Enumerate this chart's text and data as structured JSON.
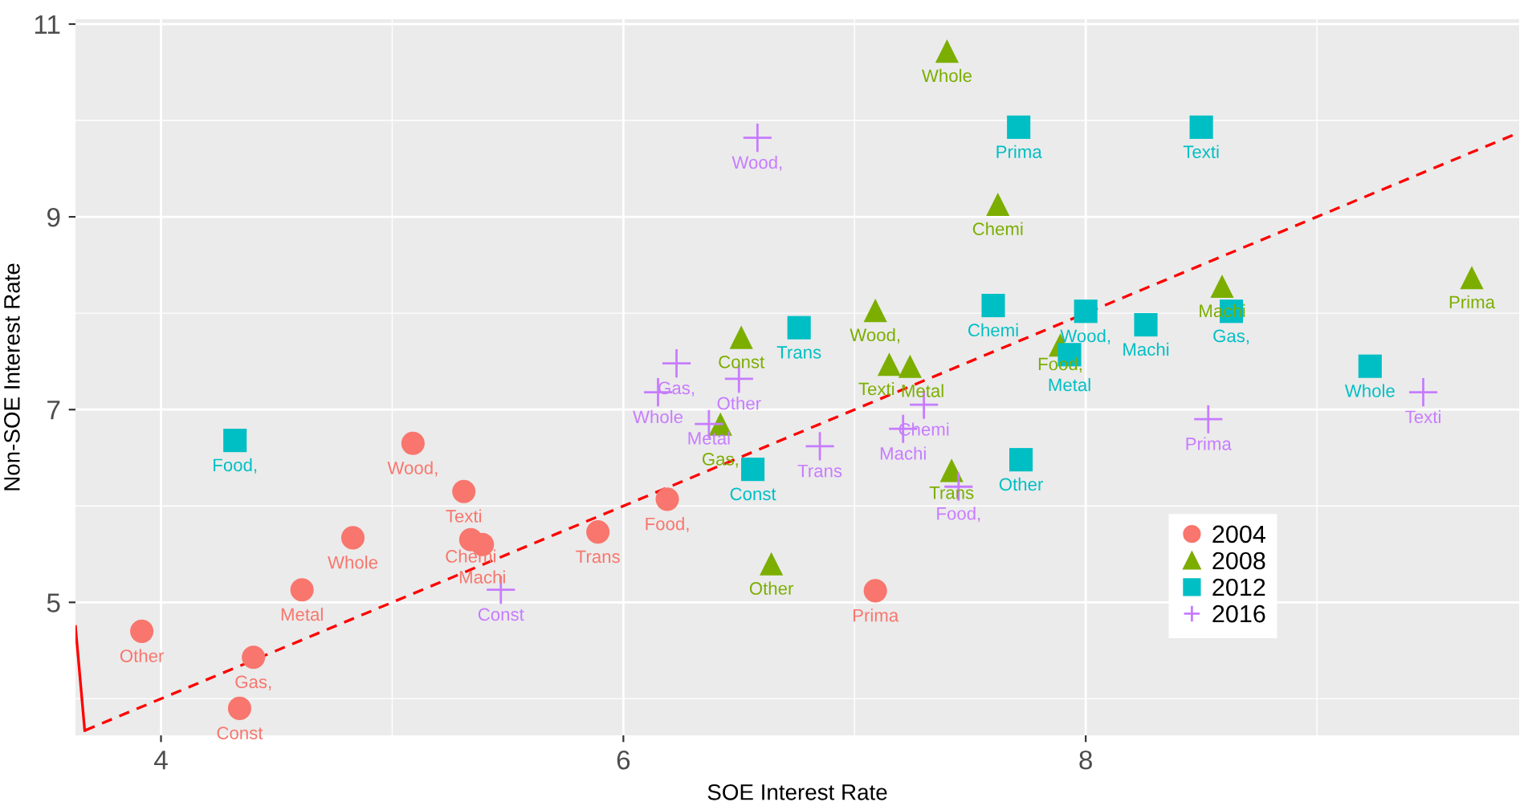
{
  "chart_data": {
    "type": "scatter",
    "xlabel": "SOE Interest Rate",
    "ylabel": "Non-SOE Interest Rate",
    "xlim": [
      3.63,
      9.875
    ],
    "ylim": [
      3.62,
      11.05
    ],
    "xticks": [
      4,
      6,
      8
    ],
    "yticks": [
      5,
      7,
      9,
      11
    ],
    "grid": true,
    "legend": "bottom right",
    "series": [
      {
        "name": "2004",
        "color": "#F8766D",
        "marker": "circle",
        "x": [
          3.917,
          4.4,
          4.34,
          4.61,
          4.83,
          5.09,
          5.31,
          5.34,
          5.39,
          5.89,
          6.19,
          7.09
        ],
        "values": [
          4.7,
          4.43,
          3.9,
          5.13,
          5.67,
          6.65,
          6.15,
          5.65,
          5.6,
          5.73,
          6.07,
          5.12
        ],
        "value_labels": [
          "Other",
          "Gas,",
          "Const",
          "Metal",
          "Whole",
          "Wood,",
          "Texti",
          "Chemi",
          "Machi",
          "Trans",
          "Food,",
          "Prima"
        ]
      },
      {
        "name": "2008",
        "color": "#7CAE00",
        "marker": "triangle",
        "x": [
          7.4,
          7.62,
          7.09,
          6.51,
          7.15,
          7.24,
          6.42,
          7.42,
          6.64,
          7.89,
          8.59,
          9.67
        ],
        "values": [
          10.72,
          9.13,
          8.03,
          7.75,
          7.47,
          7.45,
          6.85,
          6.37,
          5.4,
          7.67,
          8.28,
          8.37
        ],
        "value_labels": [
          "Whole",
          "Chemi",
          "Wood,",
          "Const",
          "Texti",
          "Metal",
          "Gas,",
          "Trans",
          "Other",
          "Food,",
          "Machi",
          "Prima"
        ]
      },
      {
        "name": "2012",
        "color": "#00BFC4",
        "marker": "square",
        "x": [
          7.71,
          8.5,
          7.6,
          8.0,
          8.26,
          8.63,
          7.93,
          6.76,
          9.23,
          6.56,
          7.72,
          4.32
        ],
        "values": [
          9.93,
          9.93,
          8.08,
          8.02,
          7.88,
          8.02,
          7.57,
          7.85,
          7.45,
          6.38,
          6.48,
          6.68
        ],
        "value_labels": [
          "Prima",
          "Texti",
          "Chemi",
          "Wood,",
          "Machi",
          "Gas,",
          "Metal",
          "Trans",
          "Whole",
          "Const",
          "Other",
          "Food,"
        ]
      },
      {
        "name": "2016",
        "color": "#C77CFF",
        "marker": "cross",
        "x": [
          6.58,
          6.23,
          6.5,
          6.15,
          6.37,
          6.85,
          7.3,
          7.21,
          7.45,
          5.47,
          8.53,
          9.46
        ],
        "values": [
          9.82,
          7.48,
          7.32,
          7.18,
          6.85,
          6.62,
          7.05,
          6.8,
          6.2,
          5.13,
          6.9,
          7.18
        ],
        "value_labels": [
          "Wood,",
          "Gas,",
          "Other",
          "Whole",
          "Metal",
          "Trans",
          "Chemi",
          "Machi",
          "Food,",
          "Const",
          "Prima",
          "Texti"
        ]
      },
      {
        "type": "line",
        "color": "#FF0000",
        "line_style": "dashed",
        "x": [
          3.67,
          9.87
        ],
        "values": [
          3.67,
          9.87
        ]
      },
      {
        "type": "line",
        "color": "#FF0000",
        "line_style": "solid",
        "x": [
          3.63,
          3.67
        ],
        "values": [
          4.75,
          3.67
        ]
      }
    ]
  }
}
